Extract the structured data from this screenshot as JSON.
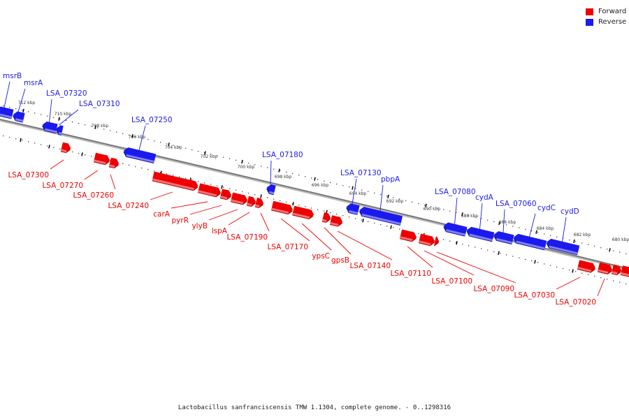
{
  "legend": {
    "forward_label": "Forward",
    "reverse_label": "Reverse",
    "forward_color": "#ee0000",
    "reverse_color": "#1a1aee"
  },
  "caption": "Lactobacillus sanfranciscensis TMW 1.1304, complete genome. - 0..1298316",
  "scale_unit": "kbp",
  "tick_labels_kbp": [
    712,
    710,
    708,
    706,
    704,
    702,
    700,
    698,
    696,
    694,
    692,
    690,
    688,
    686,
    684,
    682,
    680
  ],
  "reverse_genes": [
    "msrB",
    "msrA",
    "LSA_07320",
    "LSA_07310",
    "LSA_07250",
    "LSA_07180",
    "LSA_07130",
    "pbpA",
    "LSA_07080",
    "cydA",
    "LSA_07060",
    "cydC",
    "cydD"
  ],
  "forward_genes": [
    "LSA_07300",
    "LSA_07270",
    "LSA_07260",
    "LSA_07240",
    "carA",
    "pyrR",
    "ylyB",
    "lspA",
    "LSA_07190",
    "LSA_07170",
    "ypsC",
    "gpsB",
    "LSA_07140",
    "LSA_07110",
    "LSA_07100",
    "LSA_07090",
    "LSA_07030",
    "LSA_07020"
  ]
}
